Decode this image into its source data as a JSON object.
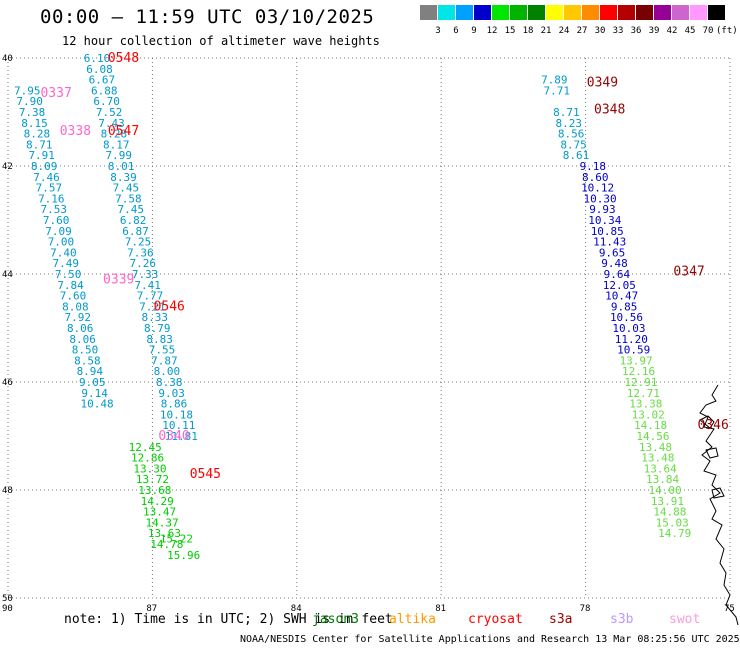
{
  "header": {
    "title": "00:00 – 11:59 UTC 03/10/2025",
    "subtitle": "12 hour collection of altimeter wave heights"
  },
  "color_scale": {
    "colors": [
      "#808080",
      "#00e6e6",
      "#00a0ff",
      "#0000cc",
      "#00e600",
      "#00b400",
      "#008200",
      "#ffff00",
      "#ffc800",
      "#ff8c00",
      "#ff0000",
      "#b40000",
      "#780000",
      "#960096",
      "#cc66cc",
      "#ff99ff",
      "#000000"
    ],
    "labels": [
      "3",
      "6",
      "9",
      "12",
      "15",
      "18",
      "21",
      "24",
      "27",
      "30",
      "33",
      "36",
      "39",
      "42",
      "45",
      "70",
      "(ft)"
    ]
  },
  "map": {
    "lat_ticks": [
      "40",
      "42",
      "44",
      "46",
      "48",
      "50"
    ],
    "lon_ticks": [
      "90",
      "87",
      "84",
      "81",
      "78",
      "75"
    ],
    "lon_range": [
      -90,
      -75
    ],
    "lat_range": [
      -50,
      -40
    ],
    "passes": [
      {
        "color": "#0099cc",
        "points": [
          [
            -88.15,
            -40.0,
            "6.10"
          ],
          [
            -88.1,
            -40.2,
            "6.08"
          ],
          [
            -88.05,
            -40.4,
            "6.67"
          ],
          [
            -88.0,
            -40.6,
            "6.88"
          ],
          [
            -87.95,
            -40.8,
            "6.70"
          ],
          [
            -87.9,
            -41.0,
            "7.52"
          ],
          [
            -87.85,
            -41.2,
            "7.43"
          ],
          [
            -87.8,
            -41.4,
            "8.28"
          ],
          [
            -87.75,
            -41.6,
            "8.17"
          ],
          [
            -87.7,
            -41.8,
            "7.99"
          ],
          [
            -87.65,
            -42.0,
            "8.01"
          ],
          [
            -87.6,
            -42.2,
            "8.39"
          ],
          [
            -87.55,
            -42.4,
            "7.45"
          ],
          [
            -87.5,
            -42.6,
            "7.58"
          ],
          [
            -87.45,
            -42.8,
            "7.45"
          ],
          [
            -87.4,
            -43.0,
            "6.82"
          ],
          [
            -87.35,
            -43.2,
            "6.87"
          ],
          [
            -87.3,
            -43.4,
            "7.25"
          ],
          [
            -87.25,
            -43.6,
            "7.36"
          ],
          [
            -87.2,
            -43.8,
            "7.26"
          ],
          [
            -87.15,
            -44.0,
            "7.33"
          ],
          [
            -87.1,
            -44.2,
            "7.41"
          ],
          [
            -87.05,
            -44.4,
            "7.77"
          ],
          [
            -87.0,
            -44.6,
            "7.21"
          ],
          [
            -86.95,
            -44.8,
            "8.33"
          ],
          [
            -86.9,
            -45.0,
            "8.79"
          ],
          [
            -86.85,
            -45.2,
            "8.83"
          ],
          [
            -86.8,
            -45.4,
            "7.55"
          ],
          [
            -86.75,
            -45.6,
            "7.87"
          ],
          [
            -86.7,
            -45.8,
            "8.00"
          ],
          [
            -86.65,
            -46.0,
            "8.38"
          ],
          [
            -86.6,
            -46.2,
            "9.03"
          ],
          [
            -86.55,
            -46.4,
            "8.86"
          ],
          [
            -86.5,
            -46.6,
            "10.18"
          ],
          [
            -86.45,
            -46.8,
            "10.11"
          ],
          [
            -86.4,
            -47.0,
            "11.81"
          ]
        ]
      },
      {
        "color": "#0099cc",
        "points": [
          [
            -89.6,
            -40.6,
            "7.95"
          ],
          [
            -89.55,
            -40.8,
            "7.90"
          ],
          [
            -89.5,
            -41.0,
            "7.38"
          ],
          [
            -89.45,
            -41.2,
            "8.15"
          ],
          [
            -89.4,
            -41.4,
            "8.28"
          ],
          [
            -89.35,
            -41.6,
            "8.71"
          ],
          [
            -89.3,
            -41.8,
            "7.91"
          ],
          [
            -89.25,
            -42.0,
            "8.09"
          ],
          [
            -89.2,
            -42.2,
            "7.46"
          ],
          [
            -89.15,
            -42.4,
            "7.57"
          ],
          [
            -89.1,
            -42.6,
            "7.16"
          ],
          [
            -89.05,
            -42.8,
            "7.53"
          ],
          [
            -89.0,
            -43.0,
            "7.60"
          ],
          [
            -88.95,
            -43.2,
            "7.09"
          ],
          [
            -88.9,
            -43.4,
            "7.00"
          ],
          [
            -88.85,
            -43.6,
            "7.40"
          ],
          [
            -88.8,
            -43.8,
            "7.49"
          ],
          [
            -88.75,
            -44.0,
            "7.50"
          ],
          [
            -88.7,
            -44.2,
            "7.84"
          ],
          [
            -88.65,
            -44.4,
            "7.60"
          ],
          [
            -88.6,
            -44.6,
            "8.08"
          ],
          [
            -88.55,
            -44.8,
            "7.92"
          ],
          [
            -88.5,
            -45.0,
            "8.06"
          ],
          [
            -88.45,
            -45.2,
            "8.06"
          ],
          [
            -88.4,
            -45.4,
            "8.50"
          ],
          [
            -88.35,
            -45.6,
            "8.58"
          ],
          [
            -88.3,
            -45.8,
            "8.94"
          ],
          [
            -88.25,
            -46.0,
            "9.05"
          ],
          [
            -88.2,
            -46.2,
            "9.14"
          ],
          [
            -88.15,
            -46.4,
            "10.48"
          ]
        ]
      },
      {
        "color": "#00cc00",
        "points": [
          [
            -87.15,
            -47.2,
            "12.45"
          ],
          [
            -87.1,
            -47.4,
            "12.86"
          ],
          [
            -87.05,
            -47.6,
            "13.30"
          ],
          [
            -87.0,
            -47.8,
            "13.72"
          ],
          [
            -86.95,
            -48.0,
            "13.68"
          ],
          [
            -86.9,
            -48.2,
            "14.29"
          ],
          [
            -86.85,
            -48.4,
            "13.47"
          ],
          [
            -86.8,
            -48.6,
            "14.37"
          ],
          [
            -86.75,
            -48.8,
            "13.63"
          ],
          [
            -86.7,
            -49.0,
            "14.78"
          ],
          [
            -86.5,
            -48.9,
            "15.22"
          ],
          [
            -86.35,
            -49.2,
            "15.96"
          ]
        ]
      },
      {
        "color": "#0000cc",
        "points": [
          [
            -77.85,
            -42.0,
            "9.18"
          ],
          [
            -77.8,
            -42.2,
            "8.60"
          ],
          [
            -77.75,
            -42.4,
            "10.12"
          ],
          [
            -77.7,
            -42.6,
            "10.30"
          ],
          [
            -77.65,
            -42.8,
            "9.93"
          ],
          [
            -77.6,
            -43.0,
            "10.34"
          ],
          [
            -77.55,
            -43.2,
            "10.85"
          ],
          [
            -77.5,
            -43.4,
            "11.43"
          ],
          [
            -77.45,
            -43.6,
            "9.65"
          ],
          [
            -77.4,
            -43.8,
            "9.48"
          ],
          [
            -77.35,
            -44.0,
            "9.64"
          ],
          [
            -77.3,
            -44.2,
            "12.05"
          ],
          [
            -77.25,
            -44.4,
            "10.47"
          ],
          [
            -77.2,
            -44.6,
            "9.85"
          ],
          [
            -77.15,
            -44.8,
            "10.56"
          ],
          [
            -77.1,
            -45.0,
            "10.03"
          ],
          [
            -77.05,
            -45.2,
            "11.20"
          ],
          [
            -77.0,
            -45.4,
            "10.59"
          ]
        ]
      },
      {
        "color": "#0099cc",
        "points": [
          [
            -78.65,
            -40.4,
            "7.89"
          ],
          [
            -78.6,
            -40.6,
            "7.71"
          ],
          [
            -78.4,
            -41.0,
            "8.71"
          ],
          [
            -78.35,
            -41.2,
            "8.23"
          ],
          [
            -78.3,
            -41.4,
            "8.56"
          ],
          [
            -78.25,
            -41.6,
            "8.75"
          ],
          [
            -78.2,
            -41.8,
            "8.61"
          ]
        ]
      },
      {
        "color": "#66dd44",
        "points": [
          [
            -76.95,
            -45.6,
            "13.97"
          ],
          [
            -76.9,
            -45.8,
            "12.16"
          ],
          [
            -76.85,
            -46.0,
            "12.91"
          ],
          [
            -76.8,
            -46.2,
            "12.71"
          ],
          [
            -76.75,
            -46.4,
            "13.38"
          ],
          [
            -76.7,
            -46.6,
            "13.02"
          ],
          [
            -76.65,
            -46.8,
            "14.18"
          ],
          [
            -76.6,
            -47.0,
            "14.56"
          ],
          [
            -76.55,
            -47.2,
            "13.48"
          ],
          [
            -76.5,
            -47.4,
            "13.48"
          ],
          [
            -76.45,
            -47.6,
            "13.64"
          ],
          [
            -76.4,
            -47.8,
            "13.84"
          ],
          [
            -76.35,
            -48.0,
            "14.00"
          ],
          [
            -76.3,
            -48.2,
            "13.91"
          ],
          [
            -76.25,
            -48.4,
            "14.88"
          ],
          [
            -76.2,
            -48.6,
            "15.03"
          ],
          [
            -76.15,
            -48.8,
            "14.79"
          ]
        ]
      }
    ],
    "time_labels": [
      {
        "text": "0548",
        "color": "#ff0000",
        "lon": -87.6,
        "lat": -40.0
      },
      {
        "text": "0337",
        "color": "#ff66cc",
        "lon": -89.0,
        "lat": -40.65
      },
      {
        "text": "0338",
        "color": "#ff66cc",
        "lon": -88.6,
        "lat": -41.35
      },
      {
        "text": "0547",
        "color": "#ff0000",
        "lon": -87.6,
        "lat": -41.35
      },
      {
        "text": "0339",
        "color": "#ff66cc",
        "lon": -87.7,
        "lat": -44.1
      },
      {
        "text": "0546",
        "color": "#ff0000",
        "lon": -86.65,
        "lat": -44.6
      },
      {
        "text": "0340",
        "color": "#ff66cc",
        "lon": -86.55,
        "lat": -47.0
      },
      {
        "text": "0545",
        "color": "#ff0000",
        "lon": -85.9,
        "lat": -47.7
      },
      {
        "text": "0349",
        "color": "#990000",
        "lon": -77.65,
        "lat": -40.45
      },
      {
        "text": "0348",
        "color": "#990000",
        "lon": -77.5,
        "lat": -40.95
      },
      {
        "text": "0347",
        "color": "#990000",
        "lon": -75.85,
        "lat": -43.95
      },
      {
        "text": "0346",
        "color": "#990000",
        "lon": -75.35,
        "lat": -46.8
      }
    ]
  },
  "note": "note: 1) Time is in UTC; 2) SWH is in feet",
  "satellites": [
    {
      "name": "jason3",
      "color": "#007700"
    },
    {
      "name": "altika",
      "color": "#ff9900"
    },
    {
      "name": "cryosat",
      "color": "#ff0000"
    },
    {
      "name": "s3a",
      "color": "#990000"
    },
    {
      "name": "s3b",
      "color": "#bb99ff"
    },
    {
      "name": "swot",
      "color": "#ff99dd"
    }
  ],
  "footer": "NOAA/NESDIS Center for Satellite Applications and Research   13 Mar 08:25:56 UTC 2025"
}
